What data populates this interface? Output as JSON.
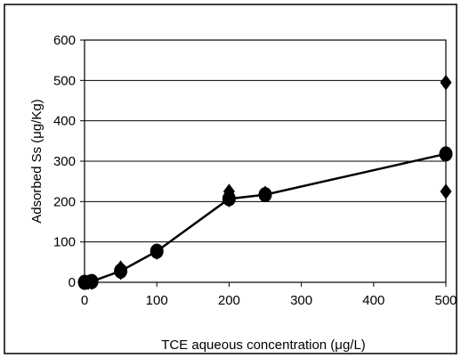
{
  "chart_data": {
    "type": "scatter",
    "xlabel": "TCE aqueous concentration (μg/L)",
    "ylabel": "Adsorbed Ss (μg/Kg)",
    "x_tick_labels": [
      "0",
      "100",
      "200",
      "300",
      "400",
      "500"
    ],
    "y_tick_labels": [
      "0",
      "100",
      "200",
      "300",
      "400",
      "500",
      "600"
    ],
    "xlim": [
      0,
      500
    ],
    "ylim": [
      0,
      600
    ],
    "grid": "horizontal",
    "legend": "none",
    "series": [
      {
        "marker": "diamond",
        "points": [
          [
            0,
            0
          ],
          [
            5,
            0
          ],
          [
            10,
            0
          ],
          [
            50,
            35
          ],
          [
            50,
            25
          ],
          [
            100,
            75
          ],
          [
            200,
            225
          ],
          [
            200,
            205
          ],
          [
            250,
            220
          ],
          [
            500,
            495
          ],
          [
            500,
            225
          ]
        ]
      },
      {
        "marker": "circle",
        "line": true,
        "points": [
          [
            0,
            0
          ],
          [
            10,
            2
          ],
          [
            50,
            28
          ],
          [
            100,
            77
          ],
          [
            200,
            207
          ],
          [
            250,
            217
          ],
          [
            500,
            318
          ]
        ]
      }
    ],
    "colors": {
      "marker": "#000000",
      "line": "#000000",
      "grid": "#000000",
      "border": "#000000"
    }
  }
}
